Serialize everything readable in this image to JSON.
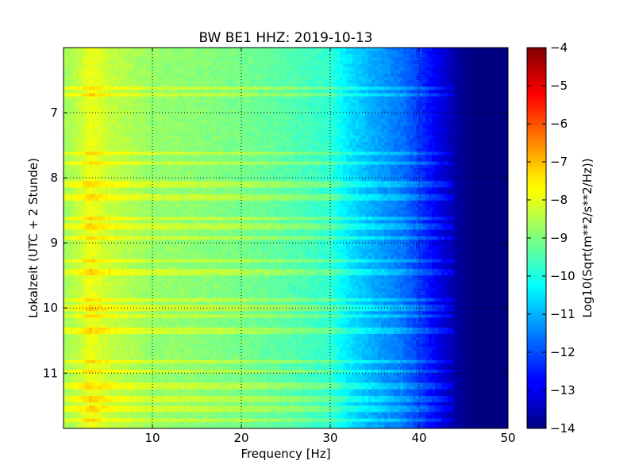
{
  "chart_data": {
    "type": "heatmap",
    "title": "BW BE1 HHZ: 2019-10-13",
    "xlabel": "Frequency [Hz]",
    "ylabel": "Lokalzeit (UTC + 2 Stunde)",
    "colorbar_label": "Log10(Sqrt(m**2/s**2/Hz))",
    "colormap": "jet",
    "xlim": [
      0,
      50
    ],
    "ylim": [
      6,
      11.85
    ],
    "y_inverted": true,
    "clim": [
      -14,
      -4
    ],
    "grid": true,
    "x_ticks": [
      10,
      20,
      30,
      40,
      50
    ],
    "x_tick_labels": [
      "10",
      "20",
      "30",
      "40",
      "50"
    ],
    "y_ticks": [
      7,
      8,
      9,
      10,
      11
    ],
    "y_tick_labels": [
      "7",
      "8",
      "9",
      "10",
      "11"
    ],
    "colorbar_ticks": [
      -4,
      -5,
      -6,
      -7,
      -8,
      -9,
      -10,
      -11,
      -12,
      -13,
      -14
    ],
    "colorbar_tick_labels": [
      "−4",
      "−5",
      "−6",
      "−7",
      "−8",
      "−9",
      "−10",
      "−11",
      "−12",
      "−13",
      "−14"
    ],
    "frequency_profile": {
      "frequency_hz": [
        0,
        2,
        3,
        5,
        10,
        15,
        20,
        25,
        30,
        32,
        35,
        38,
        40,
        42,
        44,
        46,
        50
      ],
      "log10_amplitude": [
        -8.7,
        -8.3,
        -7.9,
        -8.3,
        -8.8,
        -8.9,
        -9.1,
        -9.4,
        -9.8,
        -10.5,
        -11.1,
        -11.6,
        -12.2,
        -12.9,
        -13.6,
        -14.0,
        -14.0
      ]
    },
    "noisy_hours": [
      6.62,
      6.72,
      7.63,
      7.78,
      8.1,
      8.3,
      8.63,
      8.75,
      8.93,
      9.28,
      9.45,
      9.87,
      10.0,
      10.12,
      10.35,
      10.82,
      10.97,
      11.2,
      11.4,
      11.55,
      11.72
    ]
  }
}
